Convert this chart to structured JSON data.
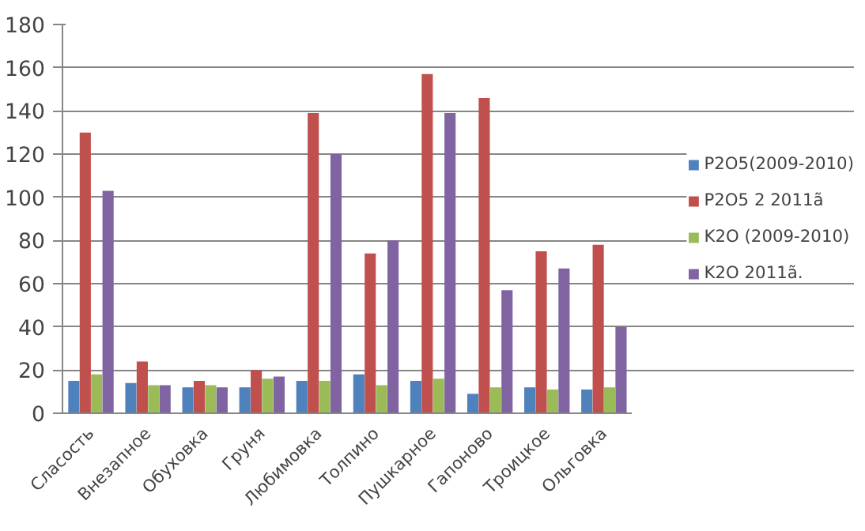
{
  "chart_data": {
    "type": "bar",
    "categories": [
      "Сласость",
      "Внезапное",
      "Обуховка",
      "Груня",
      "Любимовка",
      "Толпино",
      "Пушкарное",
      "Гапоново",
      "Троицкое",
      "Ольговка"
    ],
    "series": [
      {
        "name": "P2O5(2009-2010)",
        "color": "#4f81bd",
        "values": [
          15,
          14,
          12,
          12,
          15,
          18,
          15,
          9,
          12,
          11
        ]
      },
      {
        "name": "P2O5 2 2011ã",
        "color": "#c0504d",
        "values": [
          130,
          24,
          15,
          20,
          139,
          74,
          157,
          146,
          75,
          78
        ]
      },
      {
        "name": "K2O (2009-2010)",
        "color": "#9bbb59",
        "values": [
          18,
          13,
          13,
          16,
          15,
          13,
          16,
          12,
          11,
          12
        ]
      },
      {
        "name": "K2O 2011ã.",
        "color": "#8064a2",
        "values": [
          103,
          13,
          12,
          17,
          120,
          80,
          139,
          57,
          67,
          40
        ]
      }
    ],
    "ylim": [
      0,
      180
    ],
    "yticks": [
      0,
      20,
      40,
      60,
      80,
      100,
      120,
      140,
      160,
      180
    ],
    "grid": "y",
    "legend": "right"
  }
}
